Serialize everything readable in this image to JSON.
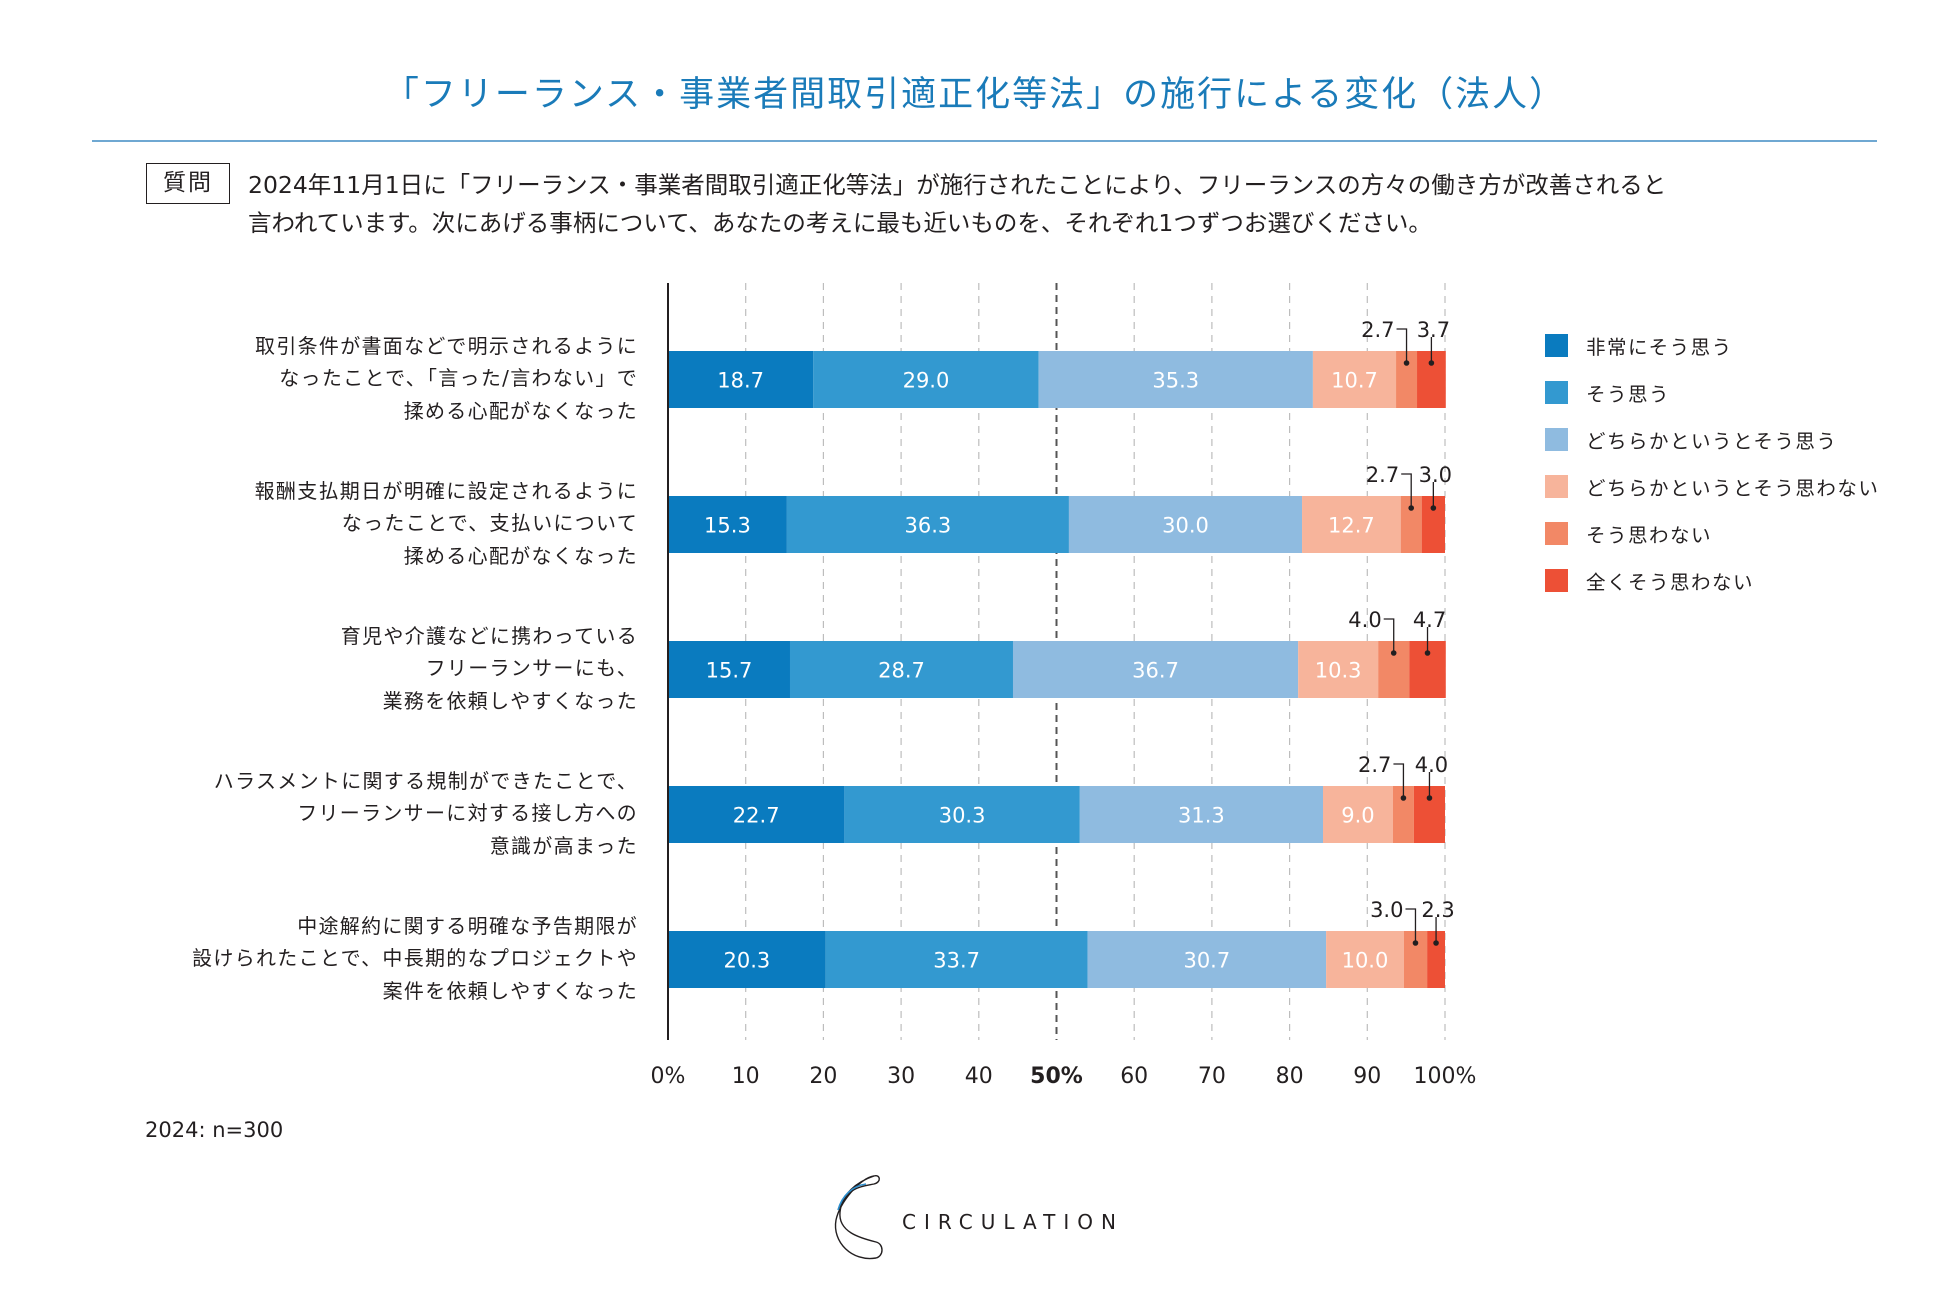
{
  "title": "「フリーランス・事業者間取引適正化等法」の施行による変化（法人）",
  "question": {
    "badge": "質問",
    "lines": [
      "2024年11月1日に「フリーランス・事業者間取引適正化等法」が施行されたことにより、フリーランスの方々の働き方が改善されると",
      "言われています。次にあげる事柄について、あなたの考えに最も近いものを、それぞれ1つずつお選びください。"
    ]
  },
  "chart_data": {
    "type": "bar",
    "orientation": "horizontal",
    "stacked": true,
    "title": "「フリーランス・事業者間取引適正化等法」の施行による変化（法人）",
    "xlabel": "",
    "ylabel": "",
    "xlim": [
      0,
      100
    ],
    "x_ticks": [
      "0%",
      "10",
      "20",
      "30",
      "40",
      "50%",
      "60",
      "70",
      "80",
      "90",
      "100%"
    ],
    "grid": "vertical dashed, emphasized at 50%",
    "legend_position": "right",
    "categories": [
      [
        "取引条件が書面などで明示されるように",
        "なったことで、「言った/言わない」で",
        "揉める心配がなくなった"
      ],
      [
        "報酬支払期日が明確に設定されるように",
        "なったことで、支払いについて",
        "揉める心配がなくなった"
      ],
      [
        "育児や介護などに携わっている",
        "フリーランサーにも、",
        "業務を依頼しやすくなった"
      ],
      [
        "ハラスメントに関する規制ができたことで、",
        "フリーランサーに対する接し方への",
        "意識が高まった"
      ],
      [
        "中途解約に関する明確な予告期限が",
        "設けられたことで、中長期的なプロジェクトや",
        "案件を依頼しやすくなった"
      ]
    ],
    "series": [
      {
        "name": "非常にそう思う",
        "color": "#0a7bbf",
        "values": [
          18.7,
          15.3,
          15.7,
          22.7,
          20.3
        ]
      },
      {
        "name": "そう思う",
        "color": "#3399d0",
        "values": [
          29.0,
          36.3,
          28.7,
          30.3,
          33.7
        ]
      },
      {
        "name": "どちらかというとそう思う",
        "color": "#8fbbe0",
        "values": [
          35.3,
          30.0,
          36.7,
          31.3,
          30.7
        ]
      },
      {
        "name": "どちらかというとそう思わない",
        "color": "#f7b49b",
        "values": [
          10.7,
          12.7,
          10.3,
          9.0,
          10.0
        ]
      },
      {
        "name": "そう思わない",
        "color": "#f28866",
        "values": [
          2.7,
          2.7,
          4.0,
          2.7,
          3.0
        ]
      },
      {
        "name": "全くそう思わない",
        "color": "#ed5036",
        "values": [
          3.7,
          3.0,
          4.7,
          4.0,
          2.3
        ]
      }
    ],
    "labels": [
      [
        "18.7",
        "29.0",
        "35.3",
        "10.7",
        "2.7",
        "3.7"
      ],
      [
        "15.3",
        "36.3",
        "30.0",
        "12.7",
        "2.7",
        "3.0"
      ],
      [
        "15.7",
        "28.7",
        "36.7",
        "10.3",
        "4.0",
        "4.7"
      ],
      [
        "22.7",
        "30.3",
        "31.3",
        "9.0",
        "2.7",
        "4.0"
      ],
      [
        "20.3",
        "33.7",
        "30.7",
        "10.0",
        "3.0",
        "2.3"
      ]
    ]
  },
  "footer": {
    "sample": "2024: n=300",
    "brand": "CIRCULATION"
  },
  "colors": {
    "title": "#1a7bb9",
    "rule": "#6fa8d2",
    "text": "#231f20"
  }
}
